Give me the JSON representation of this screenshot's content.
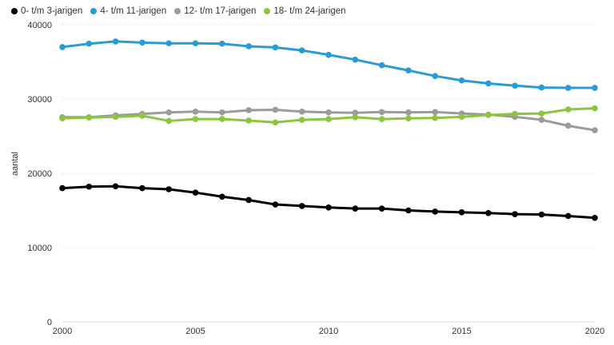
{
  "chart_data": {
    "type": "line",
    "title": "",
    "xlabel": "",
    "ylabel": "aantal",
    "xlim": [
      2000,
      2020
    ],
    "ylim": [
      0,
      40000
    ],
    "x_ticks": [
      2000,
      2005,
      2010,
      2015,
      2020
    ],
    "y_ticks": [
      0,
      10000,
      20000,
      30000,
      40000
    ],
    "grid": "horizontal dotted",
    "legend_position": "top-left",
    "x": [
      2000,
      2001,
      2002,
      2003,
      2004,
      2005,
      2006,
      2007,
      2008,
      2009,
      2010,
      2011,
      2012,
      2013,
      2014,
      2015,
      2016,
      2017,
      2018,
      2019,
      2020
    ],
    "series": [
      {
        "name": "0- t/m 3-jarigen",
        "color": "#000000",
        "values": [
          18000,
          18200,
          18250,
          18000,
          17850,
          17400,
          16850,
          16400,
          15800,
          15600,
          15400,
          15250,
          15250,
          15000,
          14850,
          14750,
          14650,
          14500,
          14450,
          14250,
          14000
        ]
      },
      {
        "name": "4- t/m 11-jarigen",
        "color": "#2b9bd6",
        "values": [
          37000,
          37450,
          37750,
          37600,
          37500,
          37500,
          37450,
          37100,
          36950,
          36550,
          35950,
          35300,
          34550,
          33850,
          33100,
          32500,
          32100,
          31800,
          31550,
          31500,
          31500
        ]
      },
      {
        "name": "12- t/m 17-jarigen",
        "color": "#9b9b9b",
        "values": [
          27550,
          27550,
          27800,
          28000,
          28200,
          28300,
          28200,
          28500,
          28550,
          28300,
          28200,
          28150,
          28250,
          28200,
          28250,
          28050,
          27900,
          27600,
          27200,
          26400,
          25800
        ]
      },
      {
        "name": "18- t/m 24-jarigen",
        "color": "#8cc63f",
        "values": [
          27400,
          27500,
          27600,
          27750,
          27050,
          27300,
          27300,
          27100,
          26850,
          27200,
          27300,
          27550,
          27300,
          27400,
          27450,
          27600,
          27850,
          28000,
          28050,
          28600,
          28750
        ]
      }
    ]
  }
}
